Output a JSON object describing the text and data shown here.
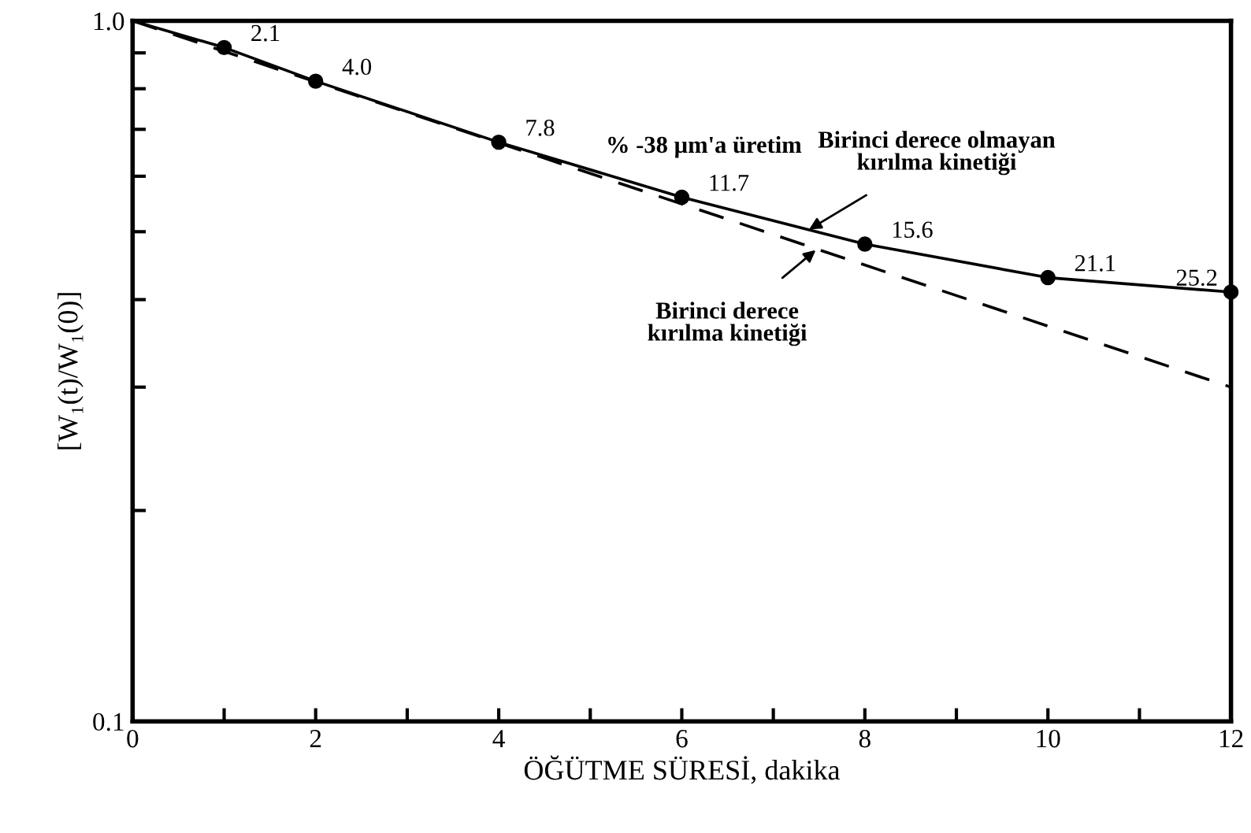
{
  "chart_data": {
    "type": "line",
    "xlabel": "ÖĞÜTME SÜRESİ, dakika",
    "ylabel": "[W₁(t)/W₁(0)]",
    "log": "y",
    "xlim": [
      0,
      12
    ],
    "xticks": [
      0,
      {
        "value": 1,
        "label": null
      },
      2,
      {
        "value": 3,
        "label": null
      },
      4,
      {
        "value": 5,
        "label": null
      },
      6,
      {
        "value": 7,
        "label": null
      },
      8,
      {
        "value": 9,
        "label": null
      },
      10,
      {
        "value": 11,
        "label": null
      },
      12
    ],
    "ylim": [
      0.1,
      1.0
    ],
    "yticks": [
      {
        "value": 0.1,
        "label": "0.1"
      },
      {
        "value": 0.2,
        "label": null
      },
      {
        "value": 0.3,
        "label": null
      },
      {
        "value": 0.4,
        "label": null
      },
      {
        "value": 0.5,
        "label": null
      },
      {
        "value": 0.6,
        "label": null
      },
      {
        "value": 0.7,
        "label": null
      },
      {
        "value": 0.8,
        "label": null
      },
      {
        "value": 0.9,
        "label": null
      },
      {
        "value": 1.0,
        "label": "1.0"
      }
    ],
    "grid": false,
    "legend": false,
    "series": [
      {
        "color": "#000000",
        "line_style": "solid",
        "marker": "none",
        "x": [
          0,
          1,
          2,
          4,
          6,
          8,
          10,
          12
        ],
        "values": [
          1.0,
          0.916,
          0.82,
          0.671,
          0.56,
          0.48,
          0.43,
          0.41
        ]
      },
      {
        "color": "#000000",
        "line_style": "dashed",
        "marker": "none",
        "x": [
          0,
          12
        ],
        "values": [
          1.0,
          0.3
        ]
      },
      {
        "type": "scatter",
        "color": "#000000",
        "marker": "circle",
        "x": [
          1,
          2,
          4,
          6,
          8,
          10,
          12
        ],
        "values": [
          0.916,
          0.82,
          0.671,
          0.56,
          0.48,
          0.43,
          0.41
        ]
      }
    ],
    "annotations": [
      "% -38 µm'a üretim",
      {
        "text": "2.1",
        "x": 1,
        "y": 0.916
      },
      {
        "text": "4.0",
        "x": 2,
        "y": 0.82
      },
      {
        "text": "7.8",
        "x": 4,
        "y": 0.671
      },
      {
        "text": "11.7",
        "x": 6,
        "y": 0.56
      },
      {
        "text": "15.6",
        "x": 8,
        "y": 0.48
      },
      {
        "text": "21.1",
        "x": 10,
        "y": 0.43
      },
      {
        "text": "25.2",
        "x": 12,
        "y": 0.41
      },
      {
        "text": "Birinci derece olmayan\nkırılma kinetiği",
        "x": 7.35,
        "y": 0.5
      },
      {
        "text": "Birinci derece\nkırılma kinetiği",
        "x": 7.5,
        "y": 0.475
      }
    ]
  }
}
